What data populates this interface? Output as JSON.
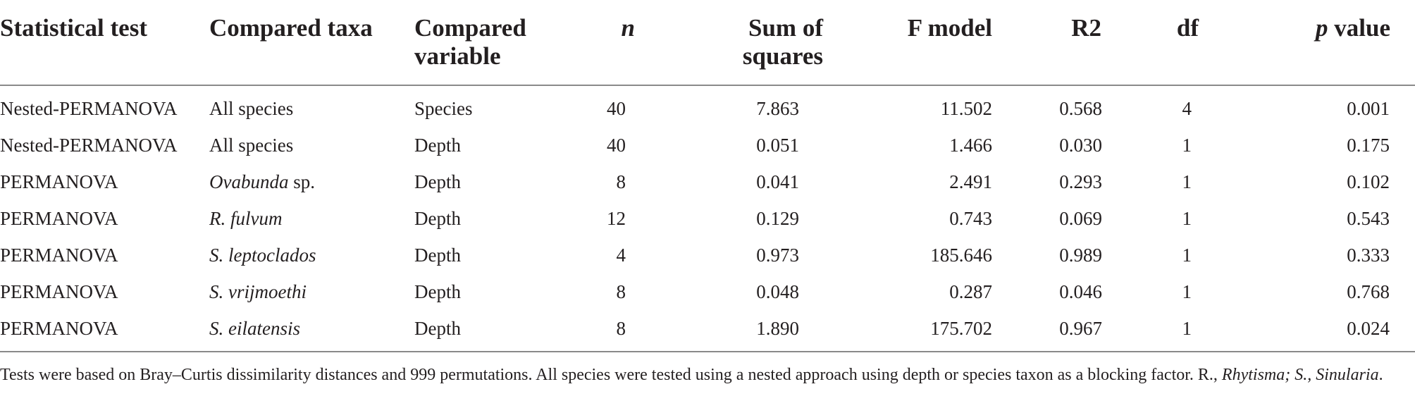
{
  "table": {
    "headers": {
      "test": "Statistical test",
      "taxa": "Compared taxa",
      "variable_line1": "Compared",
      "variable_line2": "variable",
      "n": "n",
      "ss_line1": "Sum of",
      "ss_line2": "squares",
      "f": "F model",
      "r2": "R2",
      "df": "df",
      "p_italic": "p",
      "p_rest": " value"
    },
    "rows": [
      {
        "test": "Nested-PERMANOVA",
        "taxa_italic": "",
        "taxa_plain": "All species",
        "variable": "Species",
        "n": "40",
        "ss": "7.863",
        "f": "11.502",
        "r2": "0.568",
        "df": "4",
        "p": "0.001"
      },
      {
        "test": "Nested-PERMANOVA",
        "taxa_italic": "",
        "taxa_plain": "All species",
        "variable": "Depth",
        "n": "40",
        "ss": "0.051",
        "f": "1.466",
        "r2": "0.030",
        "df": "1",
        "p": "0.175"
      },
      {
        "test": "PERMANOVA",
        "taxa_italic": "Ovabunda",
        "taxa_plain": " sp.",
        "variable": "Depth",
        "n": "8",
        "ss": "0.041",
        "f": "2.491",
        "r2": "0.293",
        "df": "1",
        "p": "0.102"
      },
      {
        "test": "PERMANOVA",
        "taxa_italic": "R. fulvum",
        "taxa_plain": "",
        "variable": "Depth",
        "n": "12",
        "ss": "0.129",
        "f": "0.743",
        "r2": "0.069",
        "df": "1",
        "p": "0.543"
      },
      {
        "test": "PERMANOVA",
        "taxa_italic": "S. leptoclados",
        "taxa_plain": "",
        "variable": "Depth",
        "n": "4",
        "ss": "0.973",
        "f": "185.646",
        "r2": "0.989",
        "df": "1",
        "p": "0.333"
      },
      {
        "test": "PERMANOVA",
        "taxa_italic": "S. vrijmoethi",
        "taxa_plain": "",
        "variable": "Depth",
        "n": "8",
        "ss": "0.048",
        "f": "0.287",
        "r2": "0.046",
        "df": "1",
        "p": "0.768"
      },
      {
        "test": "PERMANOVA",
        "taxa_italic": "S. eilatensis",
        "taxa_plain": "",
        "variable": "Depth",
        "n": "8",
        "ss": "1.890",
        "f": "175.702",
        "r2": "0.967",
        "df": "1",
        "p": "0.024"
      }
    ]
  },
  "footnote": {
    "text": "Tests were based on Bray–Curtis dissimilarity distances and 999 permutations. All species were tested using a nested approach using depth or species taxon as a blocking factor. R., ",
    "italic1": "Rhytisma",
    "mid": "; S., ",
    "italic2": "Sinularia",
    "end": "."
  }
}
